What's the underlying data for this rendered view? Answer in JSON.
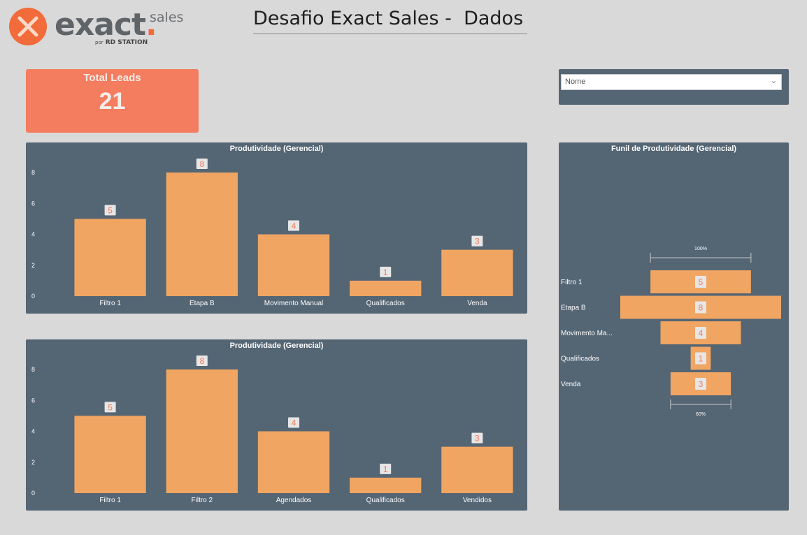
{
  "brand": {
    "name": "exact",
    "suffix": "sales",
    "by": "por",
    "by_company": "RD STATION"
  },
  "page_title": "Desafio Exact Sales -  Dados",
  "kpi": {
    "label": "Total Leads",
    "value": "21"
  },
  "slicer": {
    "placeholder": "Nome",
    "icon": "chevron-down-icon"
  },
  "colors": {
    "bar": "#f0a562",
    "panel": "#546574",
    "kpi": "#f47c5f",
    "data_label": "#f47c5f",
    "background": "#d9d9d9"
  },
  "chart_data": [
    {
      "type": "bar",
      "title": "Produtividade (Gerencial)",
      "categories": [
        "Filtro 1",
        "Etapa B",
        "Movimento Manual",
        "Qualificados",
        "Venda"
      ],
      "values": [
        5,
        8,
        4,
        1,
        3
      ],
      "yticks": [
        "0",
        "2",
        "4",
        "6",
        "8"
      ],
      "ylim": [
        0,
        8
      ],
      "grid": false
    },
    {
      "type": "bar",
      "title": "Produtividade (Gerencial)",
      "categories": [
        "Filtro 1",
        "Filtro 2",
        "Agendados",
        "Qualificados",
        "Vendidos"
      ],
      "values": [
        5,
        8,
        4,
        1,
        3
      ],
      "yticks": [
        "0",
        "2",
        "4",
        "6",
        "8"
      ],
      "ylim": [
        0,
        8
      ],
      "grid": false
    },
    {
      "type": "funnel",
      "title": "Funil de Produtividade (Gerencial)",
      "categories": [
        "Filtro 1",
        "Etapa B",
        "Movimento Ma...",
        "Qualificados",
        "Venda"
      ],
      "values": [
        5,
        8,
        4,
        1,
        3
      ],
      "top_percent_label": "100%",
      "bottom_percent_label": "60%"
    }
  ]
}
